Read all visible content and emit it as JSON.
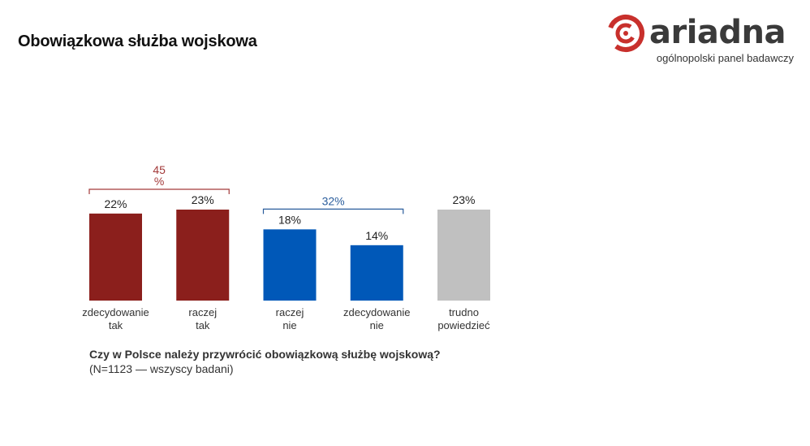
{
  "header": {
    "title": "Obowiązkowa służba wojskowa"
  },
  "logo": {
    "wordmark": "ariadna",
    "tagline": "ogólnopolski panel badawczy"
  },
  "chart_data": {
    "type": "bar",
    "categories": [
      [
        "zdecydowanie",
        "tak"
      ],
      [
        "raczej",
        "tak"
      ],
      [
        "raczej",
        "nie"
      ],
      [
        "zdecydowanie",
        "nie"
      ],
      [
        "trudno",
        "powiedzieć"
      ]
    ],
    "values": [
      22,
      23,
      18,
      14,
      23
    ],
    "value_labels": [
      "22%",
      "23%",
      "18%",
      "14%",
      "23%"
    ],
    "colors": [
      "#8b1f1c",
      "#8b1f1c",
      "#0058b8",
      "#0058b8",
      "#c0c0c0"
    ],
    "groups": [
      {
        "label": [
          "45",
          "%"
        ],
        "from": 0,
        "to": 1,
        "color": "#a33a3a"
      },
      {
        "label": [
          "32%"
        ],
        "from": 2,
        "to": 3,
        "color": "#2a5d9c"
      }
    ],
    "ylim": [
      0,
      23
    ],
    "grid": false
  },
  "caption": {
    "question": "Czy w Polsce należy przywrócić obowiązkową służbę wojskową?",
    "note": "(N=1123 — wszyscy badani)"
  },
  "colors": {
    "brand": "#c8302c",
    "text": "#333333"
  }
}
